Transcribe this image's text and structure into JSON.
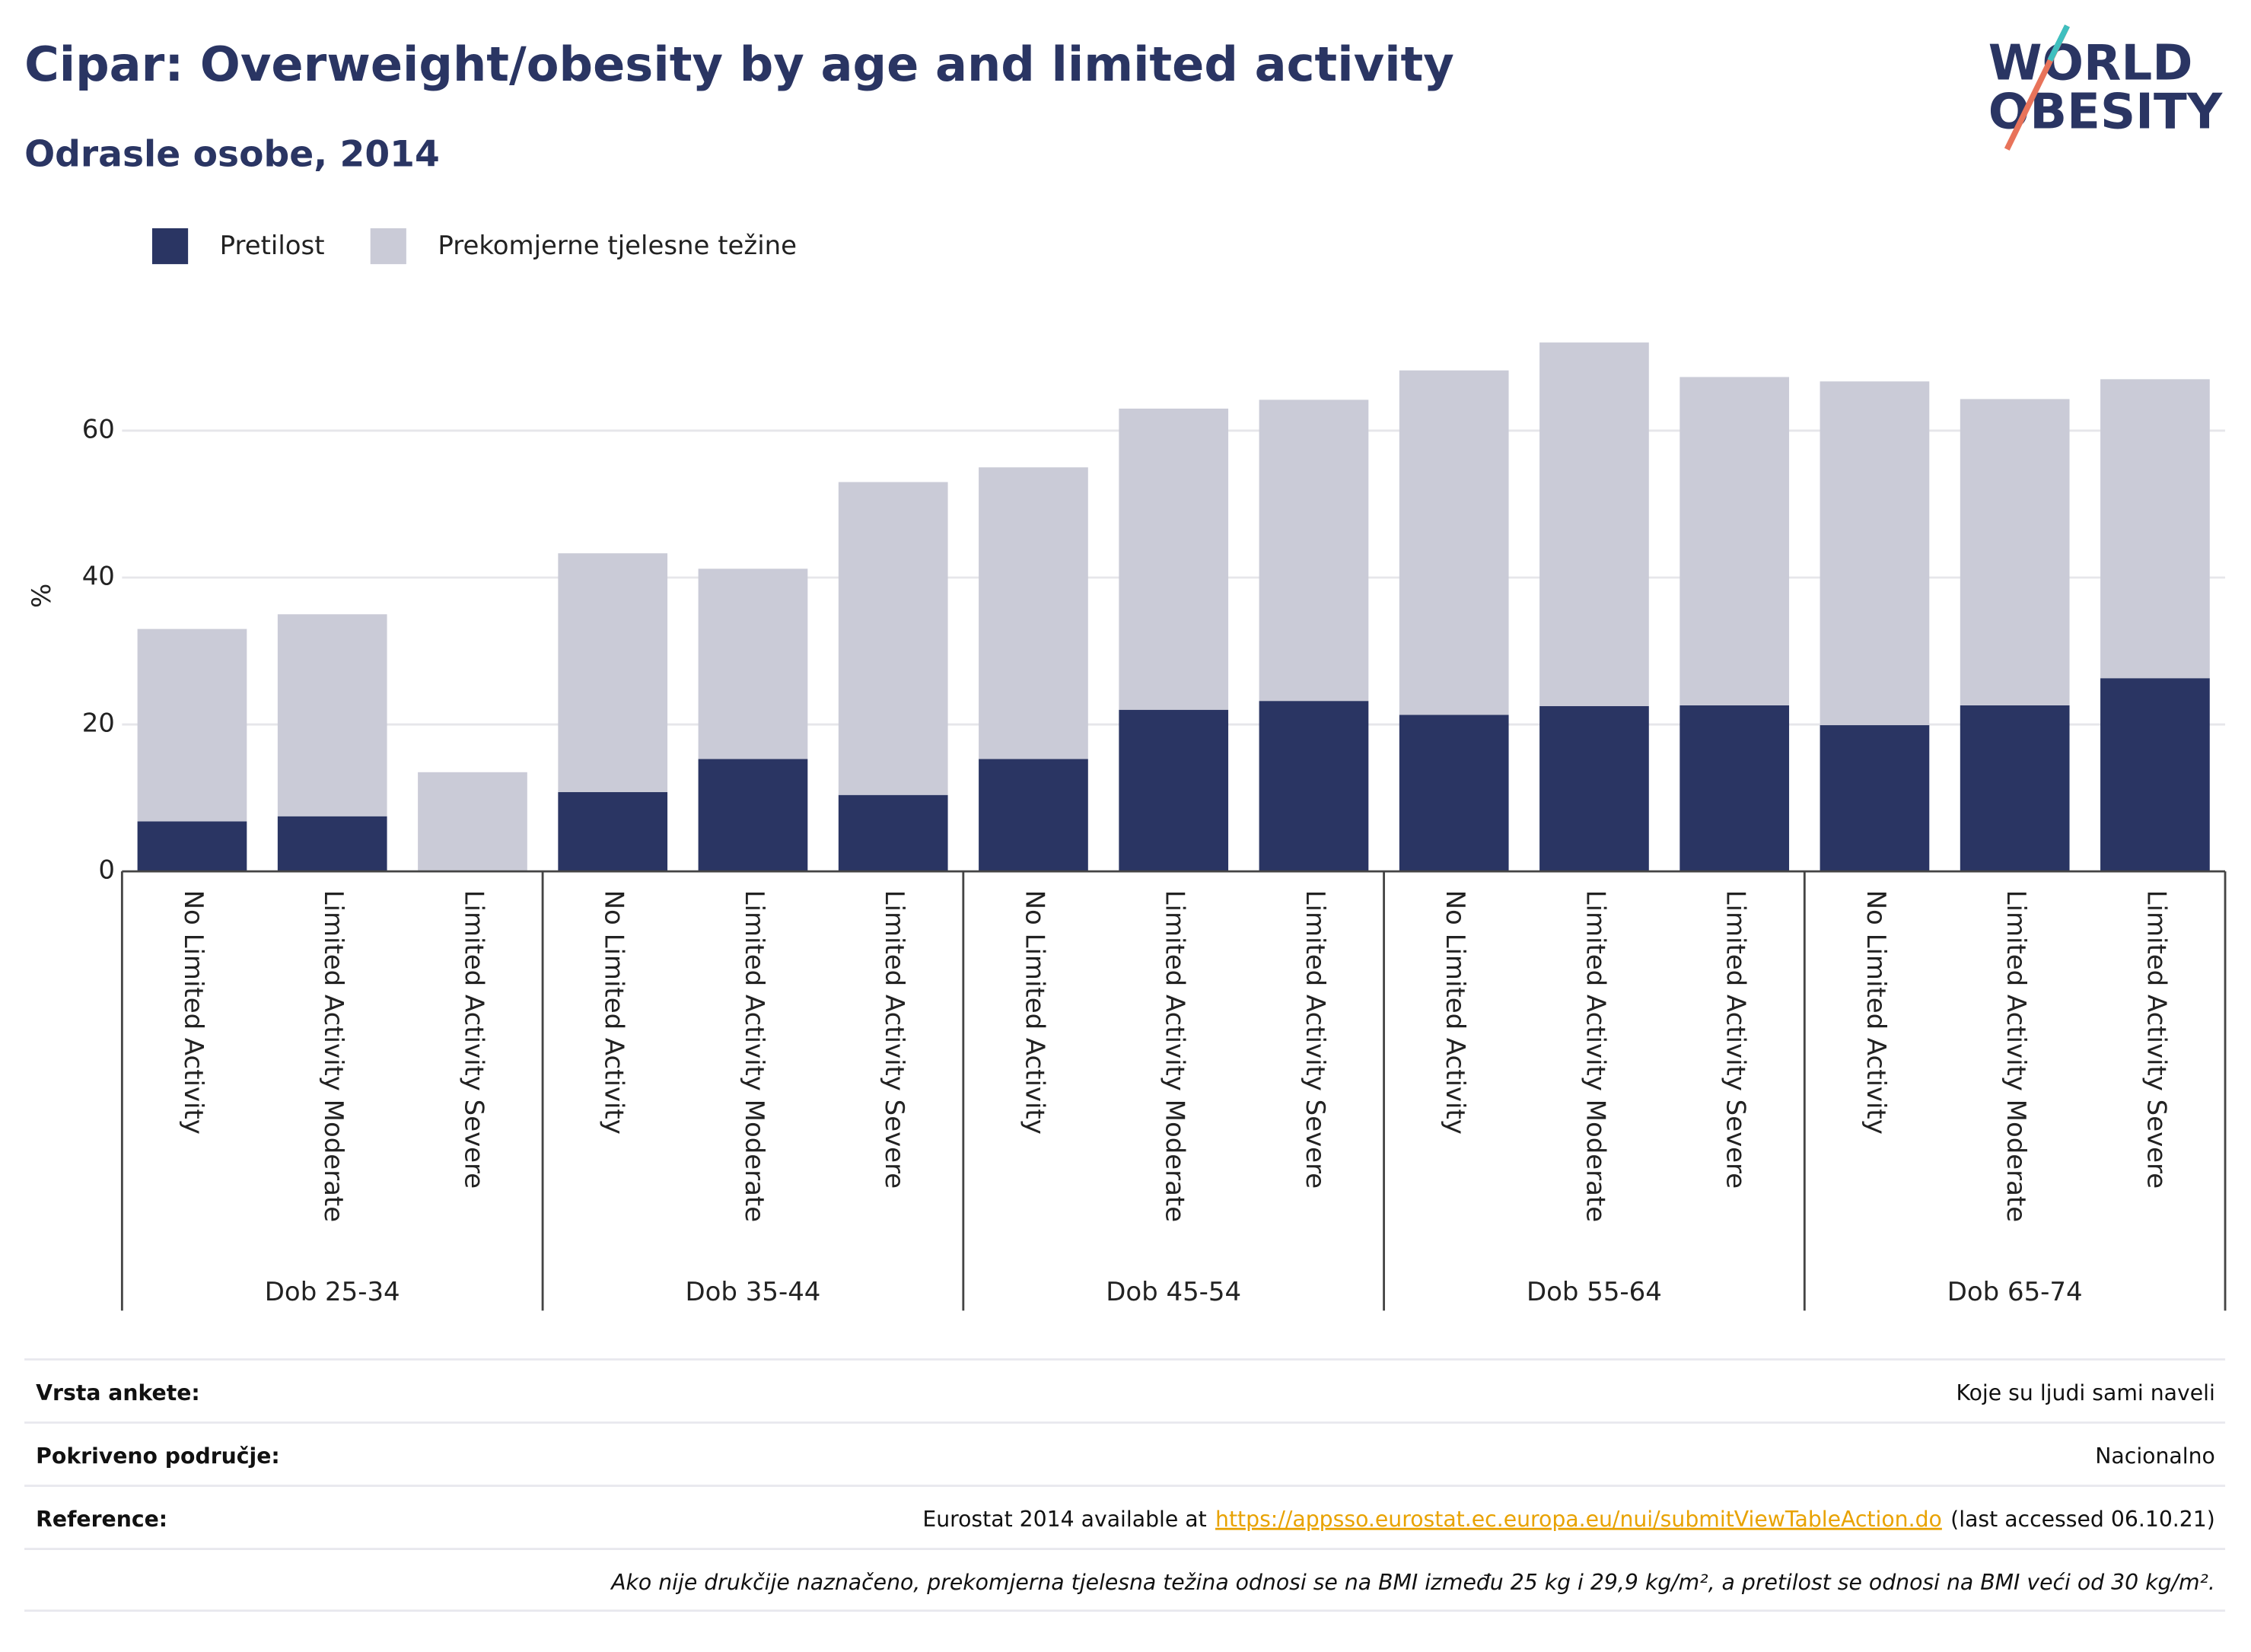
{
  "chart_data": {
    "type": "stacked_bar",
    "title": "Cipar: Overweight/obesity by age and limited activity",
    "subtitle": "Odrasle osobe, 2014",
    "y_label": "%",
    "categories": [
      "No Limited Activity",
      "Limited Activity Moderate",
      "Limited Activity Severe",
      "No Limited Activity",
      "Limited Activity Moderate",
      "Limited Activity Severe",
      "No Limited Activity",
      "Limited Activity Moderate",
      "Limited Activity Severe",
      "No Limited Activity",
      "Limited Activity Moderate",
      "Limited Activity Severe",
      "No Limited Activity",
      "Limited Activity Moderate",
      "Limited Activity Severe"
    ],
    "groups": [
      "Dob 25-34",
      "Dob 35-44",
      "Dob 45-54",
      "Dob 55-64",
      "Dob 65-74"
    ],
    "series": [
      {
        "name": "Pretilost",
        "color": "#2a3563",
        "values": [
          6.8,
          7.5,
          0,
          10.8,
          15.3,
          10.4,
          15.3,
          22,
          23.2,
          21.3,
          22.5,
          22.6,
          19.9,
          22.6,
          26.3
        ]
      },
      {
        "name": "Prekomjerne tjelesne težine",
        "color": "#cacbd7",
        "values": [
          26.2,
          27.5,
          13.5,
          32.5,
          25.9,
          42.6,
          39.7,
          41,
          41,
          46.9,
          49.5,
          44.7,
          46.8,
          41.7,
          40.7
        ]
      }
    ],
    "ylim": [
      0,
      72
    ],
    "yticks": [
      0,
      20,
      40,
      60
    ],
    "grid": true,
    "legend": "top-left"
  },
  "logo": {
    "line1": "WORLD",
    "line2": "OBESITY"
  },
  "footer": {
    "rows": [
      {
        "label": "Vrsta ankete:",
        "value": "Koje su ljudi sami naveli"
      },
      {
        "label": "Pokriveno područje:",
        "value": "Nacionalno"
      },
      {
        "label": "Reference:",
        "value_before": "Eurostat 2014 available at",
        "link": "https://appsso.eurostat.ec.europa.eu/nui/submitViewTableAction.do",
        "value_after": "(last accessed 06.10.21)"
      }
    ],
    "note": "Ako nije drukčije naznačeno, prekomjerna tjelesna težina odnosi se na BMI između 25 kg i 29,9 kg/m², a pretilost se odnosi na BMI veći od 30 kg/m²."
  }
}
